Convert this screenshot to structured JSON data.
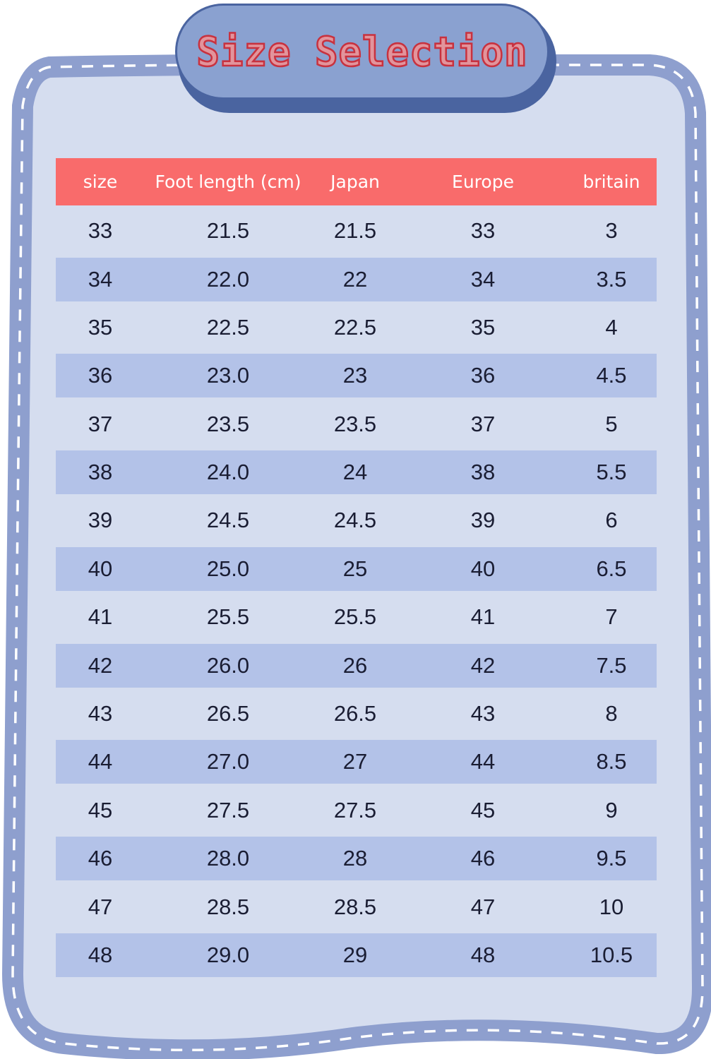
{
  "title": "Size Selection",
  "colors": {
    "frame": "#8e9fce",
    "background": "#d5ddef",
    "header": "#f96b6b",
    "stripe": "#b3c2e8",
    "title_text": "#c8323f"
  },
  "table": {
    "headers": [
      "size",
      "Foot length (cm)",
      "Japan",
      "Europe",
      "britain"
    ],
    "rows": [
      [
        "33",
        "21.5",
        "21.5",
        "33",
        "3"
      ],
      [
        "34",
        "22.0",
        "22",
        "34",
        "3.5"
      ],
      [
        "35",
        "22.5",
        "22.5",
        "35",
        "4"
      ],
      [
        "36",
        "23.0",
        "23",
        "36",
        "4.5"
      ],
      [
        "37",
        "23.5",
        "23.5",
        "37",
        "5"
      ],
      [
        "38",
        "24.0",
        "24",
        "38",
        "5.5"
      ],
      [
        "39",
        "24.5",
        "24.5",
        "39",
        "6"
      ],
      [
        "40",
        "25.0",
        "25",
        "40",
        "6.5"
      ],
      [
        "41",
        "25.5",
        "25.5",
        "41",
        "7"
      ],
      [
        "42",
        "26.0",
        "26",
        "42",
        "7.5"
      ],
      [
        "43",
        "26.5",
        "26.5",
        "43",
        "8"
      ],
      [
        "44",
        "27.0",
        "27",
        "44",
        "8.5"
      ],
      [
        "45",
        "27.5",
        "27.5",
        "45",
        "9"
      ],
      [
        "46",
        "28.0",
        "28",
        "46",
        "9.5"
      ],
      [
        "47",
        "28.5",
        "28.5",
        "47",
        "10"
      ],
      [
        "48",
        "29.0",
        "29",
        "48",
        "10.5"
      ]
    ]
  }
}
